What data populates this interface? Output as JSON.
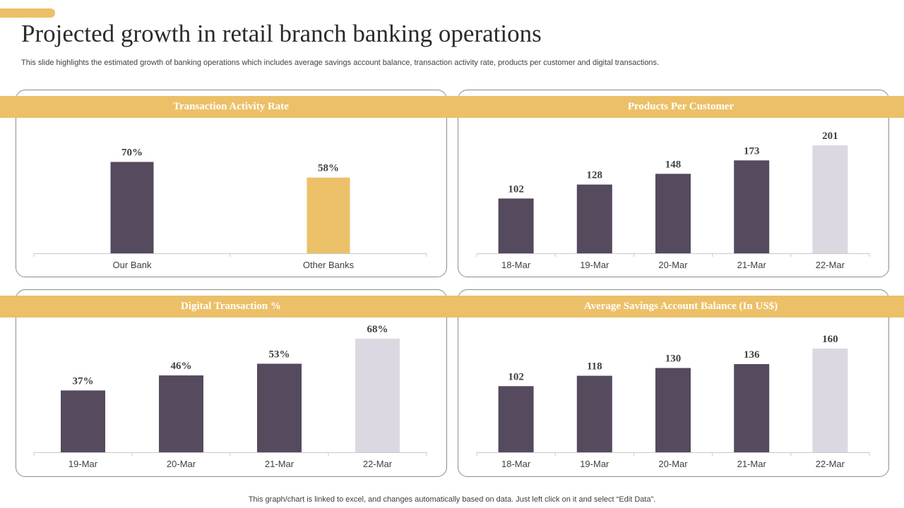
{
  "header": {
    "title": "Projected growth in retail branch banking operations",
    "subtitle": "This slide highlights the estimated growth of banking operations which includes average savings account balance, transaction activity rate,  products per customer and digital transactions."
  },
  "footer": {
    "note": "This graph/chart is linked to excel,  and changes automatically based on data. Just left click on it and select “Edit Data”."
  },
  "colors": {
    "accent": "#ECC068",
    "bar_dark": "#554A5E",
    "bar_light": "#DCD8E2"
  },
  "chart_data": [
    {
      "id": "transaction",
      "type": "bar",
      "title": "Transaction Activity Rate",
      "categories": [
        "Our Bank",
        "Other Banks"
      ],
      "values": [
        70,
        58
      ],
      "value_labels": [
        "70%",
        "58%"
      ],
      "bar_colors": [
        "#554A5E",
        "#ECC068"
      ],
      "ylim": [
        0,
        80
      ]
    },
    {
      "id": "products",
      "type": "bar",
      "title": "Products Per Customer",
      "categories": [
        "18-Mar",
        "19-Mar",
        "20-Mar",
        "21-Mar",
        "22-Mar"
      ],
      "values": [
        102,
        128,
        148,
        173,
        201
      ],
      "value_labels": [
        "102",
        "128",
        "148",
        "173",
        "201"
      ],
      "bar_colors": [
        "#554A5E",
        "#554A5E",
        "#554A5E",
        "#554A5E",
        "#DCD8E2"
      ],
      "ylim": [
        0,
        201
      ]
    },
    {
      "id": "digital",
      "type": "bar",
      "title": "Digital Transaction  %",
      "categories": [
        "19-Mar",
        "20-Mar",
        "21-Mar",
        "22-Mar"
      ],
      "values": [
        37,
        46,
        53,
        68
      ],
      "value_labels": [
        "37%",
        "46%",
        "53%",
        "68%"
      ],
      "bar_colors": [
        "#554A5E",
        "#554A5E",
        "#554A5E",
        "#DCD8E2"
      ],
      "ylim": [
        0,
        68
      ]
    },
    {
      "id": "savings",
      "type": "bar",
      "title": "Average Savings Account  Balance (In US$)",
      "categories": [
        "18-Mar",
        "19-Mar",
        "20-Mar",
        "21-Mar",
        "22-Mar"
      ],
      "values": [
        102,
        118,
        130,
        136,
        160
      ],
      "value_labels": [
        "102",
        "118",
        "130",
        "136",
        "160"
      ],
      "bar_colors": [
        "#554A5E",
        "#554A5E",
        "#554A5E",
        "#554A5E",
        "#DCD8E2"
      ],
      "ylim": [
        0,
        160
      ]
    }
  ]
}
